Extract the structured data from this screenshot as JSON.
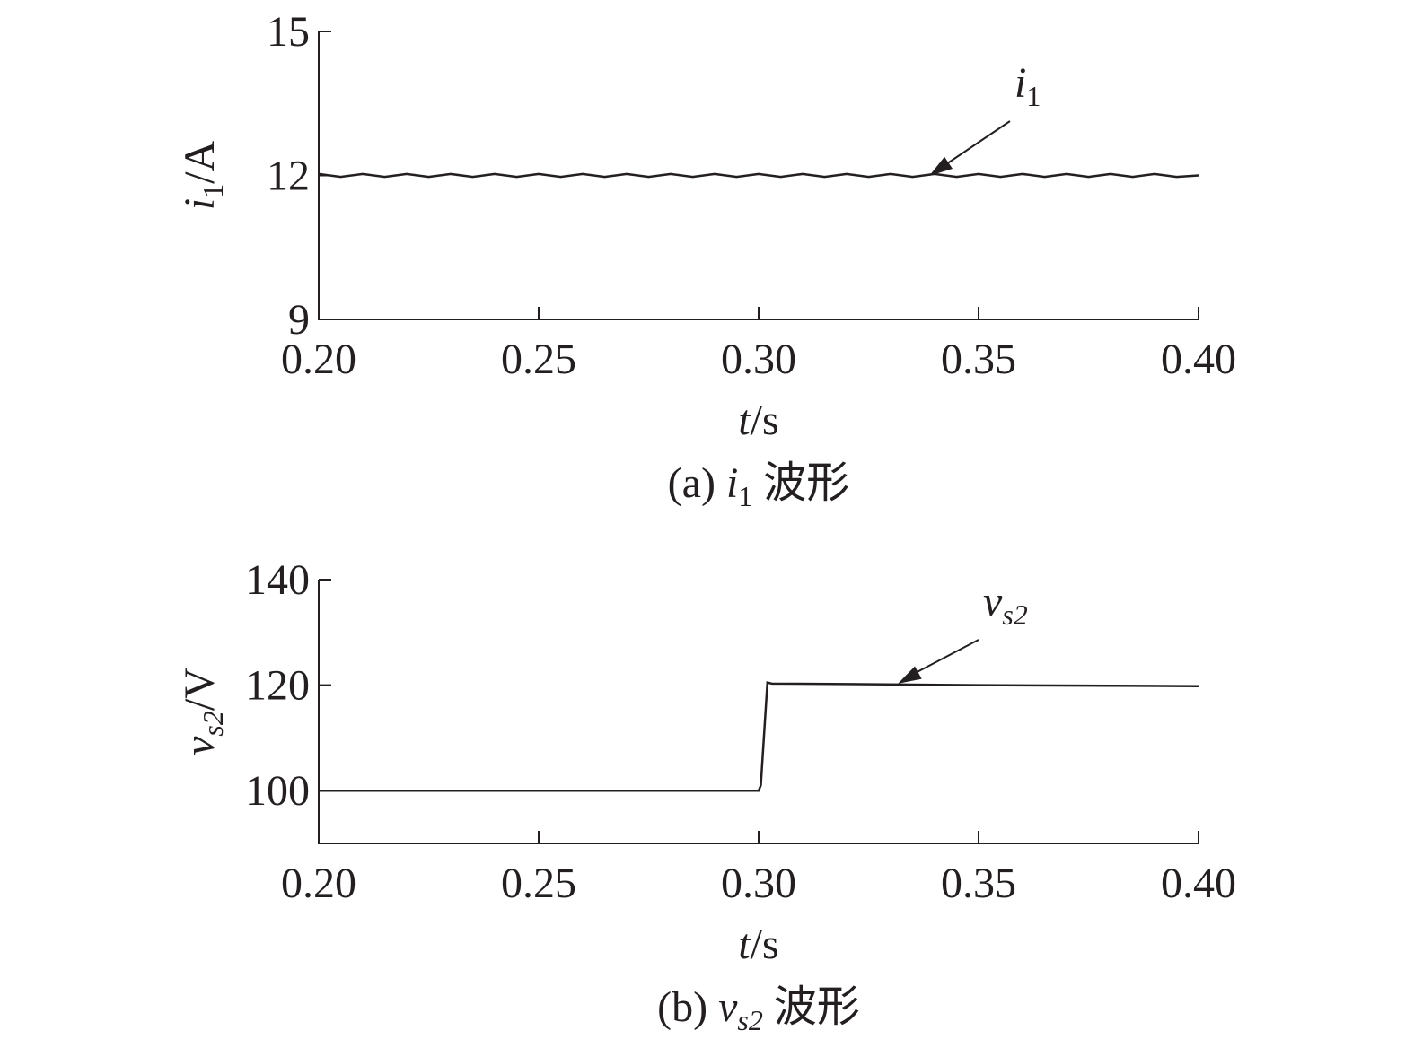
{
  "chart_data": [
    {
      "type": "line",
      "ylabel": [
        "i",
        "1",
        "/A"
      ],
      "xlabel": [
        "t",
        "/s"
      ],
      "caption": [
        "(a)",
        "i",
        "1",
        "波形"
      ],
      "annotation": [
        "i",
        "1"
      ],
      "xlim": [
        0.2,
        0.4
      ],
      "xticks": [
        {
          "value": 0.2,
          "label": "0.20"
        },
        {
          "value": 0.25,
          "label": "0.25"
        },
        {
          "value": 0.3,
          "label": "0.30"
        },
        {
          "value": 0.35,
          "label": "0.35"
        },
        {
          "value": 0.4,
          "label": "0.40"
        }
      ],
      "ylim": [
        9,
        15
      ],
      "yticks": [
        9,
        12,
        15
      ],
      "x": [
        0.2,
        0.205,
        0.21,
        0.215,
        0.22,
        0.225,
        0.23,
        0.235,
        0.24,
        0.245,
        0.25,
        0.255,
        0.26,
        0.265,
        0.27,
        0.275,
        0.28,
        0.285,
        0.29,
        0.295,
        0.3,
        0.305,
        0.31,
        0.315,
        0.32,
        0.325,
        0.33,
        0.335,
        0.34,
        0.345,
        0.35,
        0.355,
        0.36,
        0.365,
        0.37,
        0.375,
        0.38,
        0.385,
        0.39,
        0.395,
        0.4
      ],
      "series": [
        {
          "color": "#231f20",
          "values": [
            12.03,
            11.97,
            12.03,
            11.97,
            12.03,
            11.97,
            12.03,
            11.97,
            12.03,
            11.97,
            12.03,
            11.97,
            12.03,
            11.97,
            12.03,
            11.97,
            12.03,
            11.97,
            12.03,
            11.97,
            12.03,
            11.97,
            12.03,
            11.97,
            12.03,
            11.97,
            12.03,
            11.97,
            12.03,
            11.97,
            12.03,
            11.97,
            12.03,
            11.97,
            12.03,
            11.97,
            12.03,
            11.97,
            12.03,
            11.97,
            12.0
          ]
        }
      ]
    },
    {
      "type": "line",
      "ylabel": [
        "v",
        "s2",
        "/V"
      ],
      "xlabel": [
        "t",
        "/s"
      ],
      "caption": [
        "(b)",
        "v",
        "s2",
        "波形"
      ],
      "annotation": [
        "v",
        "s2"
      ],
      "xlim": [
        0.2,
        0.4
      ],
      "xticks": [
        {
          "value": 0.2,
          "label": "0.20"
        },
        {
          "value": 0.25,
          "label": "0.25"
        },
        {
          "value": 0.3,
          "label": "0.30"
        },
        {
          "value": 0.35,
          "label": "0.35"
        },
        {
          "value": 0.4,
          "label": "0.40"
        }
      ],
      "ylim": [
        90,
        140
      ],
      "yticks": [
        100,
        120,
        140
      ],
      "x": [
        0.2,
        0.25,
        0.3,
        0.3005,
        0.302,
        0.303,
        0.32,
        0.35,
        0.38,
        0.4
      ],
      "series": [
        {
          "color": "#231f20",
          "values": [
            100,
            100,
            100,
            101,
            120.5,
            120.3,
            120.2,
            120,
            119.9,
            119.8
          ]
        }
      ]
    }
  ]
}
